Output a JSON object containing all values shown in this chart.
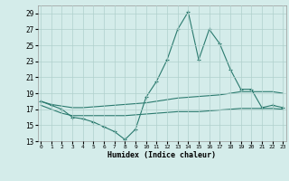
{
  "title": "",
  "xlabel": "Humidex (Indice chaleur)",
  "ylabel": "",
  "bg_color": "#d4ecea",
  "grid_color": "#b0d0cc",
  "line_color": "#2a7a6e",
  "x_values": [
    0,
    1,
    2,
    3,
    4,
    5,
    6,
    7,
    8,
    9,
    10,
    11,
    12,
    13,
    14,
    15,
    16,
    17,
    18,
    19,
    20,
    21,
    22,
    23
  ],
  "line1": [
    18.0,
    17.5,
    17.0,
    16.0,
    15.8,
    15.4,
    14.8,
    14.2,
    13.2,
    14.5,
    18.5,
    20.5,
    23.2,
    27.0,
    29.2,
    23.2,
    27.0,
    25.2,
    22.0,
    19.5,
    19.5,
    17.2,
    17.5,
    17.2
  ],
  "line2": [
    18.0,
    17.6,
    17.4,
    17.2,
    17.2,
    17.3,
    17.4,
    17.5,
    17.6,
    17.7,
    17.8,
    18.0,
    18.2,
    18.4,
    18.5,
    18.6,
    18.7,
    18.8,
    19.0,
    19.2,
    19.2,
    19.2,
    19.2,
    19.0
  ],
  "line3": [
    17.5,
    17.0,
    16.5,
    16.2,
    16.2,
    16.2,
    16.2,
    16.2,
    16.2,
    16.3,
    16.4,
    16.5,
    16.6,
    16.7,
    16.7,
    16.7,
    16.8,
    16.9,
    17.0,
    17.1,
    17.1,
    17.1,
    17.1,
    17.0
  ],
  "xlim": [
    0,
    23
  ],
  "ylim": [
    13,
    30
  ],
  "yticks": [
    13,
    15,
    17,
    19,
    21,
    23,
    25,
    27,
    29
  ],
  "xticks": [
    0,
    1,
    2,
    3,
    4,
    5,
    6,
    7,
    8,
    9,
    10,
    11,
    12,
    13,
    14,
    15,
    16,
    17,
    18,
    19,
    20,
    21,
    22,
    23
  ]
}
